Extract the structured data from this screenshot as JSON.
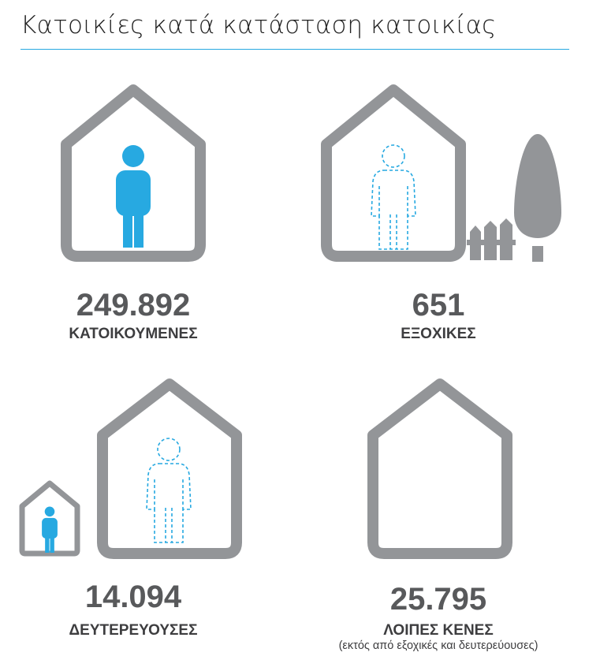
{
  "title": "Κατοικίες κατά κατάσταση κατοικίας",
  "colors": {
    "accent": "#27a9e1",
    "house": "#939598",
    "text": "#58595b"
  },
  "items": [
    {
      "value": "249.892",
      "label": "ΚΑΤΟΙΚΟΥΜΕΝΕΣ",
      "icon": "occupied-house-icon"
    },
    {
      "value": "651",
      "label": "ΕΞΟΧΙΚΕΣ",
      "icon": "vacation-house-icon"
    },
    {
      "value": "14.094",
      "label": "ΔΕΥΤΕΡΕΥΟΥΣΕΣ",
      "icon": "secondary-house-icon"
    },
    {
      "value": "25.795",
      "label": "ΛΟΙΠΕΣ ΚΕΝΕΣ",
      "note": "(εκτός από εξοχικές και δευτερεύουσες)",
      "icon": "empty-house-icon"
    }
  ]
}
